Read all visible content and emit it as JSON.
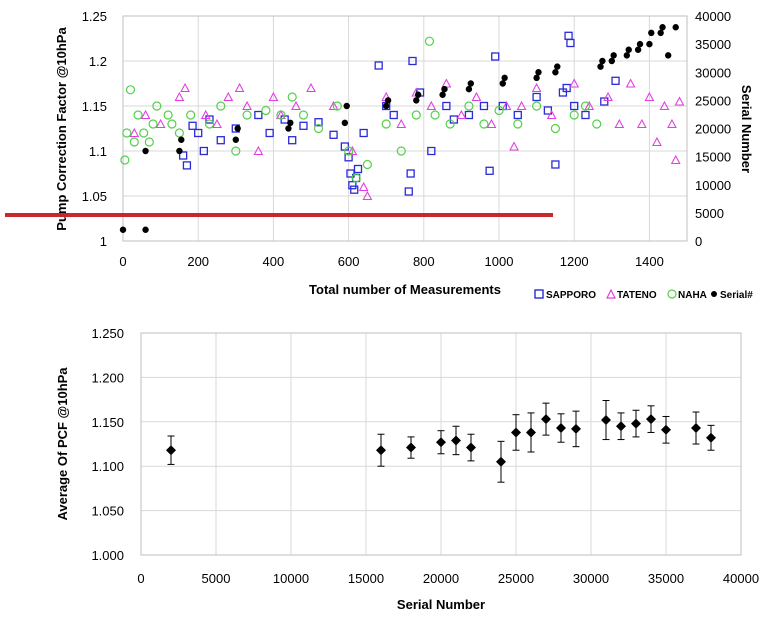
{
  "colors": {
    "sapporo": "#2a2ad6",
    "tateno": "#e23fe2",
    "naha": "#52d04a",
    "serial": "#000000",
    "grid": "#d9d9d9",
    "cutline": "#c8282d"
  },
  "chart_data": [
    {
      "type": "scatter",
      "title": "",
      "xlabel": "Total number of Measurements",
      "ylabel": "Pump Correction Factor @10hPa",
      "y2label": "Serial Number",
      "xlim": [
        0,
        1500
      ],
      "ylim": [
        1.0,
        1.25
      ],
      "y2lim": [
        0,
        40000
      ],
      "xticks": [
        "0",
        "200",
        "400",
        "600",
        "800",
        "1000",
        "1200",
        "1400"
      ],
      "yticks": [
        "1",
        "1.05",
        "1.1",
        "1.15",
        "1.2",
        "1.25"
      ],
      "y2ticks": [
        "0",
        "5000",
        "10000",
        "15000",
        "20000",
        "25000",
        "30000",
        "35000",
        "40000"
      ],
      "grid": true,
      "legend_position": "bottom-right",
      "series": [
        {
          "name": "SAPPORO",
          "marker": "square",
          "axis": "left",
          "color_key": "sapporo",
          "points": [
            [
              160,
              1.095
            ],
            [
              170,
              1.084
            ],
            [
              185,
              1.128
            ],
            [
              200,
              1.12
            ],
            [
              215,
              1.1
            ],
            [
              230,
              1.135
            ],
            [
              260,
              1.112
            ],
            [
              300,
              1.125
            ],
            [
              360,
              1.14
            ],
            [
              390,
              1.12
            ],
            [
              430,
              1.135
            ],
            [
              450,
              1.112
            ],
            [
              480,
              1.128
            ],
            [
              520,
              1.132
            ],
            [
              560,
              1.118
            ],
            [
              590,
              1.105
            ],
            [
              600,
              1.093
            ],
            [
              605,
              1.075
            ],
            [
              610,
              1.062
            ],
            [
              615,
              1.057
            ],
            [
              620,
              1.07
            ],
            [
              625,
              1.08
            ],
            [
              640,
              1.12
            ],
            [
              680,
              1.195
            ],
            [
              700,
              1.15
            ],
            [
              720,
              1.14
            ],
            [
              760,
              1.055
            ],
            [
              765,
              1.075
            ],
            [
              770,
              1.2
            ],
            [
              790,
              1.165
            ],
            [
              820,
              1.1
            ],
            [
              860,
              1.15
            ],
            [
              880,
              1.135
            ],
            [
              920,
              1.14
            ],
            [
              960,
              1.15
            ],
            [
              975,
              1.078
            ],
            [
              990,
              1.205
            ],
            [
              1010,
              1.15
            ],
            [
              1050,
              1.14
            ],
            [
              1100,
              1.16
            ],
            [
              1130,
              1.145
            ],
            [
              1150,
              1.085
            ],
            [
              1170,
              1.165
            ],
            [
              1180,
              1.17
            ],
            [
              1185,
              1.228
            ],
            [
              1190,
              1.22
            ],
            [
              1200,
              1.15
            ],
            [
              1230,
              1.14
            ],
            [
              1280,
              1.155
            ],
            [
              1310,
              1.178
            ]
          ]
        },
        {
          "name": "TATENO",
          "marker": "triangle",
          "axis": "left",
          "color_key": "tateno",
          "points": [
            [
              30,
              1.12
            ],
            [
              60,
              1.14
            ],
            [
              100,
              1.13
            ],
            [
              150,
              1.16
            ],
            [
              165,
              1.17
            ],
            [
              220,
              1.14
            ],
            [
              250,
              1.13
            ],
            [
              280,
              1.16
            ],
            [
              310,
              1.17
            ],
            [
              330,
              1.15
            ],
            [
              360,
              1.1
            ],
            [
              400,
              1.16
            ],
            [
              420,
              1.14
            ],
            [
              460,
              1.15
            ],
            [
              500,
              1.17
            ],
            [
              560,
              1.15
            ],
            [
              610,
              1.1
            ],
            [
              640,
              1.06
            ],
            [
              650,
              1.05
            ],
            [
              700,
              1.16
            ],
            [
              740,
              1.13
            ],
            [
              780,
              1.165
            ],
            [
              820,
              1.15
            ],
            [
              860,
              1.175
            ],
            [
              900,
              1.14
            ],
            [
              940,
              1.16
            ],
            [
              980,
              1.13
            ],
            [
              1020,
              1.15
            ],
            [
              1040,
              1.105
            ],
            [
              1060,
              1.15
            ],
            [
              1100,
              1.17
            ],
            [
              1140,
              1.14
            ],
            [
              1200,
              1.175
            ],
            [
              1240,
              1.15
            ],
            [
              1290,
              1.16
            ],
            [
              1320,
              1.13
            ],
            [
              1350,
              1.175
            ],
            [
              1380,
              1.13
            ],
            [
              1400,
              1.16
            ],
            [
              1420,
              1.11
            ],
            [
              1440,
              1.15
            ],
            [
              1460,
              1.13
            ],
            [
              1470,
              1.09
            ],
            [
              1480,
              1.155
            ]
          ]
        },
        {
          "name": "NAHA",
          "marker": "circle",
          "axis": "left",
          "color_key": "naha",
          "points": [
            [
              5,
              1.09
            ],
            [
              10,
              1.12
            ],
            [
              20,
              1.168
            ],
            [
              30,
              1.11
            ],
            [
              40,
              1.14
            ],
            [
              55,
              1.12
            ],
            [
              70,
              1.11
            ],
            [
              80,
              1.13
            ],
            [
              90,
              1.15
            ],
            [
              120,
              1.14
            ],
            [
              130,
              1.13
            ],
            [
              150,
              1.12
            ],
            [
              180,
              1.14
            ],
            [
              230,
              1.13
            ],
            [
              260,
              1.15
            ],
            [
              300,
              1.1
            ],
            [
              330,
              1.14
            ],
            [
              380,
              1.145
            ],
            [
              420,
              1.14
            ],
            [
              450,
              1.16
            ],
            [
              480,
              1.14
            ],
            [
              520,
              1.125
            ],
            [
              570,
              1.15
            ],
            [
              600,
              1.1
            ],
            [
              620,
              1.07
            ],
            [
              650,
              1.085
            ],
            [
              700,
              1.13
            ],
            [
              740,
              1.1
            ],
            [
              780,
              1.14
            ],
            [
              815,
              1.222
            ],
            [
              830,
              1.14
            ],
            [
              870,
              1.13
            ],
            [
              920,
              1.15
            ],
            [
              960,
              1.13
            ],
            [
              1000,
              1.145
            ],
            [
              1050,
              1.13
            ],
            [
              1100,
              1.15
            ],
            [
              1150,
              1.125
            ],
            [
              1200,
              1.14
            ],
            [
              1230,
              1.15
            ],
            [
              1260,
              1.13
            ]
          ]
        },
        {
          "name": "Serial#",
          "marker": "dot",
          "axis": "right",
          "color_key": "serial",
          "points": [
            [
              0,
              2000
            ],
            [
              60,
              2000
            ],
            [
              60,
              16000
            ],
            [
              150,
              16000
            ],
            [
              155,
              18000
            ],
            [
              300,
              18000
            ],
            [
              305,
              20000
            ],
            [
              440,
              20000
            ],
            [
              445,
              21000
            ],
            [
              590,
              21000
            ],
            [
              595,
              24000
            ],
            [
              700,
              24000
            ],
            [
              705,
              25000
            ],
            [
              780,
              25000
            ],
            [
              785,
              26000
            ],
            [
              850,
              26000
            ],
            [
              855,
              27000
            ],
            [
              920,
              27000
            ],
            [
              925,
              28000
            ],
            [
              1010,
              28000
            ],
            [
              1015,
              29000
            ],
            [
              1100,
              29000
            ],
            [
              1105,
              30000
            ],
            [
              1150,
              30000
            ],
            [
              1155,
              31000
            ],
            [
              1270,
              31000
            ],
            [
              1275,
              32000
            ],
            [
              1300,
              32000
            ],
            [
              1305,
              33000
            ],
            [
              1340,
              33000
            ],
            [
              1345,
              34000
            ],
            [
              1370,
              34000
            ],
            [
              1375,
              35000
            ],
            [
              1400,
              35000
            ],
            [
              1405,
              37000
            ],
            [
              1430,
              37000
            ],
            [
              1435,
              38000
            ],
            [
              1470,
              38000
            ],
            [
              1450,
              33000
            ]
          ]
        }
      ]
    },
    {
      "type": "scatter",
      "title": "",
      "xlabel": "Serial Number",
      "ylabel": "Average Of PCF @10hPa",
      "xlim": [
        0,
        40000
      ],
      "ylim": [
        1.0,
        1.25
      ],
      "xticks": [
        "0",
        "5000",
        "10000",
        "15000",
        "20000",
        "25000",
        "30000",
        "35000",
        "40000"
      ],
      "yticks": [
        "1.000",
        "1.050",
        "1.100",
        "1.150",
        "1.200",
        "1.250"
      ],
      "grid": true,
      "error_bars": true,
      "points": [
        {
          "x": 2000,
          "y": 1.118,
          "err": 0.016
        },
        {
          "x": 16000,
          "y": 1.118,
          "err": 0.018
        },
        {
          "x": 18000,
          "y": 1.121,
          "err": 0.012
        },
        {
          "x": 20000,
          "y": 1.127,
          "err": 0.013
        },
        {
          "x": 21000,
          "y": 1.129,
          "err": 0.016
        },
        {
          "x": 22000,
          "y": 1.121,
          "err": 0.015
        },
        {
          "x": 24000,
          "y": 1.105,
          "err": 0.023
        },
        {
          "x": 25000,
          "y": 1.138,
          "err": 0.02
        },
        {
          "x": 26000,
          "y": 1.138,
          "err": 0.022
        },
        {
          "x": 27000,
          "y": 1.153,
          "err": 0.018
        },
        {
          "x": 28000,
          "y": 1.143,
          "err": 0.016
        },
        {
          "x": 29000,
          "y": 1.142,
          "err": 0.02
        },
        {
          "x": 31000,
          "y": 1.152,
          "err": 0.022
        },
        {
          "x": 32000,
          "y": 1.145,
          "err": 0.015
        },
        {
          "x": 33000,
          "y": 1.148,
          "err": 0.015
        },
        {
          "x": 34000,
          "y": 1.153,
          "err": 0.015
        },
        {
          "x": 35000,
          "y": 1.141,
          "err": 0.015
        },
        {
          "x": 37000,
          "y": 1.143,
          "err": 0.018
        },
        {
          "x": 38000,
          "y": 1.132,
          "err": 0.014
        }
      ]
    }
  ]
}
